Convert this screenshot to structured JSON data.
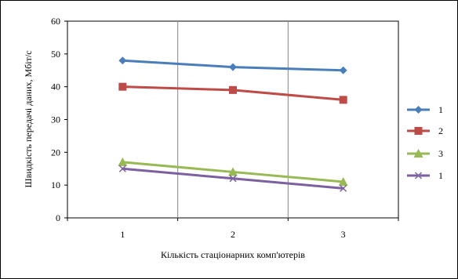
{
  "chart_data": {
    "type": "line",
    "title": "",
    "xlabel": "Кількість стаціонарних комп'ютерів",
    "ylabel": "Швидкість передачі даних, Мбіт/с",
    "categories": [
      "1",
      "2",
      "3"
    ],
    "ylim": [
      0,
      60
    ],
    "y_ticks": [
      "0",
      "10",
      "20",
      "30",
      "40",
      "50",
      "60"
    ],
    "grid": "vertical",
    "legend_position": "right",
    "series": [
      {
        "name": "1",
        "values": [
          48,
          46,
          45
        ],
        "color": "#4a7ebb",
        "marker": "diamond"
      },
      {
        "name": "2",
        "values": [
          40,
          39,
          36
        ],
        "color": "#be4b48",
        "marker": "square"
      },
      {
        "name": "3",
        "values": [
          17,
          14,
          11
        ],
        "color": "#98b954",
        "marker": "triangle"
      },
      {
        "name": "1",
        "values": [
          15,
          12,
          9
        ],
        "color": "#7d60a0",
        "marker": "x"
      }
    ]
  }
}
